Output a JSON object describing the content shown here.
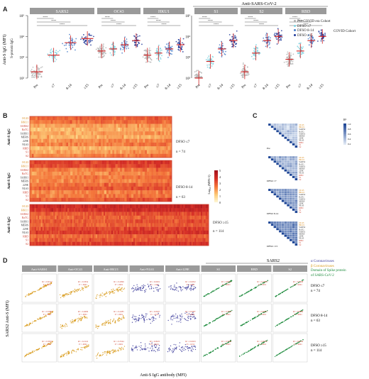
{
  "panels": {
    "A": {
      "letter": "A"
    },
    "B": {
      "letter": "B"
    },
    "C": {
      "letter": "C"
    },
    "D": {
      "letter": "D"
    }
  },
  "panel_a": {
    "overhead_title": "Anti-SARS-CoV-2",
    "ylabel": "Anti-S IgG (MFI)",
    "ylabel2": "S-protein IgG",
    "groups": [
      "SARS2",
      "OC43",
      "HKU1",
      "S1",
      "S2",
      "RBD"
    ],
    "xticks": [
      "Pre",
      "≤7",
      "8-14",
      "≥15"
    ],
    "yticks": [
      "10²",
      "10³",
      "10⁴",
      "10⁵"
    ],
    "legend": [
      {
        "label": "Pre-COVID era Cohort",
        "color": "#b0b0b0"
      },
      {
        "label": "DFSO ≤7",
        "color": "#7fd3e0"
      },
      {
        "label": "DFSO 8-14",
        "color": "#4a7ec9"
      },
      {
        "label": "DFSO ≥15",
        "color": "#1f3a9a"
      }
    ],
    "legend_group": "COVID Cohort",
    "colors": {
      "mean": "#d02020"
    }
  },
  "panel_b": {
    "ylabel": "Anti-S IgG",
    "row_labels": [
      "OC43",
      "HKU1",
      "SARS2",
      "RaTG",
      "SARS1",
      "MERS",
      "229E",
      "NL63",
      "RBD",
      "S1",
      "S2"
    ],
    "blocks": [
      {
        "group": "DFSO ≤7",
        "n": "n = 74"
      },
      {
        "group": "DFSO 8-14",
        "n": "n = 63"
      },
      {
        "group": "DFSO ≥15",
        "n": "n = 114"
      }
    ],
    "colorbar_label": "Log₁₀ (MFI+1)",
    "colorbar_ticks": [
      "5",
      "4",
      "3",
      "2",
      "1",
      "0"
    ]
  },
  "panel_c": {
    "blocks": [
      "Pre",
      "DFSO ≤7",
      "DFSO 8-14",
      "DFSO ≥15"
    ],
    "colorbar_ticks": [
      "1.0",
      "0.8",
      "0.6",
      "0.4",
      "0.2"
    ],
    "colorbar_label": "R²"
  },
  "panel_d": {
    "top_label": "SARS2",
    "columns": [
      "Anti-SARS1",
      "Anti-OC43",
      "Anti-HKU1",
      "Anti-NL63",
      "Anti-229E",
      "S1",
      "RBD",
      "S2"
    ],
    "rows": [
      {
        "group": "DFSO ≤7",
        "n": "n = 74"
      },
      {
        "group": "DFSO 8-14",
        "n": "n = 63"
      },
      {
        "group": "DFSO ≥15",
        "n": "n = 114"
      }
    ],
    "ylabel": "SARS2 Anti-S (MFI)",
    "xlabel": "Anti-S IgG antibody (MFI)",
    "legend": [
      {
        "label": "α Coronaviruses",
        "color": "#3a3a9a"
      },
      {
        "label": "β Coronaviruses",
        "color": "#d89a1a"
      },
      {
        "label": "Domain of Spike protein",
        "color": "#1a8a3a"
      },
      {
        "label": "of SARS-CoV-2",
        "color": "#1a8a3a"
      }
    ],
    "stats": [
      [
        "R² = 0.6152",
        "R² = 0.3354",
        "R² = 0.2096",
        "R² = 0.0291",
        "R² = 0.0052",
        "R² = 0.8251",
        "R² = 0.7658",
        "R² = 0.7998"
      ],
      [
        "R² = 0.5980",
        "R² = 0.4009",
        "R² = 0.2285",
        "R² = 0.0507",
        "R² = 0.0087",
        "R² = 0.7818",
        "R² = 0.6953",
        "R² = 0.8686"
      ],
      [
        "R² = 0.3650",
        "R² = 0.2122",
        "R² = 0.3344",
        "R² = 0.0025",
        "R² = 0.0023",
        "R² = 0.7509",
        "R² = 0.6745",
        "R² = 0.8236"
      ]
    ],
    "pvals": [
      [
        "P < .0001",
        "P < .0001",
        "P < .0001",
        "P = .1423",
        "P = .5365",
        "P < .0001",
        "P < .0001",
        "P < .0001"
      ],
      [
        "P < .0001",
        "P < .0001",
        "P < .0001",
        "P = .0752",
        "P = .4654",
        "P < .0001",
        "P < .0001",
        "P < .0001"
      ],
      [
        "P < .0001",
        "P < .0001",
        "P < .0001",
        "P = .6019",
        "P = .6152",
        "P < .0001",
        "P < .0001",
        "P < .0001"
      ]
    ]
  },
  "chart_data": [
    {
      "type": "scatter",
      "panel": "A",
      "title": "",
      "ylabel": "Anti-S IgG (MFI)",
      "ylim_log10": [
        2,
        5
      ],
      "categories": [
        "Pre",
        "≤7",
        "8-14",
        "≥15"
      ],
      "series": [
        {
          "name": "SARS2",
          "means": [
            2.3,
            3.1,
            3.7,
            3.9
          ]
        },
        {
          "name": "OC43",
          "means": [
            3.3,
            3.4,
            3.6,
            3.8
          ]
        },
        {
          "name": "HKU1",
          "means": [
            3.1,
            3.2,
            3.4,
            3.6
          ]
        },
        {
          "name": "S1",
          "means": [
            2.0,
            2.8,
            3.4,
            3.8
          ]
        },
        {
          "name": "S2",
          "means": [
            2.3,
            3.2,
            3.8,
            4.0
          ]
        },
        {
          "name": "RBD",
          "means": [
            2.9,
            3.3,
            3.8,
            4.0
          ]
        }
      ]
    }
  ]
}
